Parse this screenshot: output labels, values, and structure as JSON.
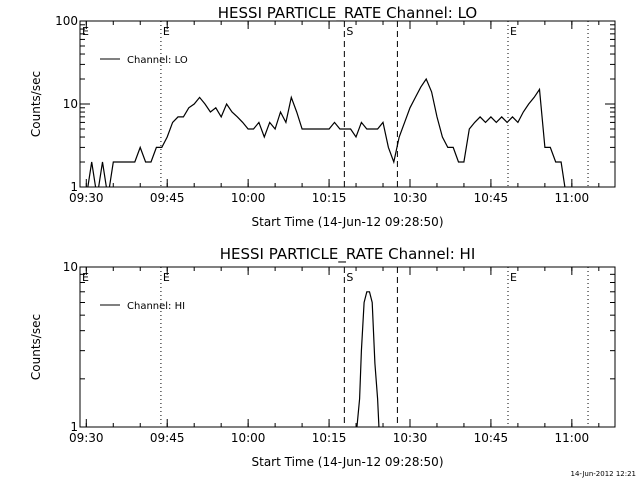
{
  "footer": {
    "timestamp": "14-Jun-2012 12:21"
  },
  "chart_data": [
    {
      "type": "line",
      "title": "HESSI PARTICLE_RATE Channel: LO",
      "xlabel": "Start Time (14-Jun-12 09:28:50)",
      "ylabel": "Counts/sec",
      "yscale": "log",
      "ylim": [
        1,
        100
      ],
      "ytick_labels": [
        "1",
        "10",
        "100"
      ],
      "xlim": [
        "09:28:50",
        "11:08:00"
      ],
      "xtick_labels": [
        "09:30",
        "09:45",
        "10:00",
        "10:15",
        "10:30",
        "10:45",
        "11:00"
      ],
      "legend": {
        "placement": "top-left",
        "entries": [
          "Channel: LO"
        ]
      },
      "markers": [
        {
          "label": "E",
          "time": "09:28:50",
          "style": "none"
        },
        {
          "label": "E",
          "time": "09:43:50",
          "style": "dotted"
        },
        {
          "label": "S",
          "time": "10:17:50",
          "style": "dashed"
        },
        {
          "label": "",
          "time": "10:27:40",
          "style": "dashed"
        },
        {
          "label": "E",
          "time": "10:48:10",
          "style": "dotted"
        },
        {
          "label": "",
          "time": "11:03:00",
          "style": "dotted"
        }
      ],
      "series": [
        {
          "name": "Channel: LO",
          "x": [
            "09:30",
            "09:31",
            "09:32",
            "09:33",
            "09:34",
            "09:35",
            "09:36",
            "09:37",
            "09:38",
            "09:39",
            "09:40",
            "09:41",
            "09:42",
            "09:43",
            "09:44",
            "09:45",
            "09:46",
            "09:47",
            "09:48",
            "09:49",
            "09:50",
            "09:51",
            "09:52",
            "09:53",
            "09:54",
            "09:55",
            "09:56",
            "09:57",
            "09:58",
            "09:59",
            "10:00",
            "10:01",
            "10:02",
            "10:03",
            "10:04",
            "10:05",
            "10:06",
            "10:07",
            "10:08",
            "10:09",
            "10:10",
            "10:11",
            "10:12",
            "10:13",
            "10:14",
            "10:15",
            "10:16",
            "10:17",
            "10:18",
            "10:19",
            "10:20",
            "10:21",
            "10:22",
            "10:23",
            "10:24",
            "10:25",
            "10:26",
            "10:27",
            "10:28",
            "10:29",
            "10:30",
            "10:31",
            "10:32",
            "10:33",
            "10:34",
            "10:35",
            "10:36",
            "10:37",
            "10:38",
            "10:39",
            "10:40",
            "10:41",
            "10:42",
            "10:43",
            "10:44",
            "10:45",
            "10:46",
            "10:47",
            "10:48",
            "10:49",
            "10:50",
            "10:51",
            "10:52",
            "10:53",
            "10:54",
            "10:55",
            "10:56",
            "10:57",
            "10:58",
            "10:59",
            "11:00"
          ],
          "y": [
            1,
            2,
            1,
            2,
            1,
            2,
            2,
            2,
            2,
            2,
            3,
            2,
            2,
            3,
            3,
            4,
            6,
            7,
            7,
            9,
            10,
            12,
            10,
            8,
            9,
            7,
            10,
            8,
            7,
            6,
            5,
            5,
            6,
            4,
            6,
            5,
            8,
            6,
            12,
            8,
            5,
            5,
            5,
            5,
            5,
            5,
            6,
            5,
            5,
            5,
            4,
            6,
            5,
            5,
            5,
            6,
            3,
            2,
            4,
            6,
            9,
            12,
            16,
            20,
            14,
            7,
            4,
            3,
            3,
            2,
            2,
            5,
            6,
            7,
            6,
            7,
            6,
            7,
            6,
            7,
            6,
            8,
            10,
            12,
            15,
            3,
            3,
            2,
            2,
            1,
            1
          ]
        }
      ]
    },
    {
      "type": "line",
      "title": "HESSI PARTICLE_RATE Channel: HI",
      "xlabel": "Start Time (14-Jun-12 09:28:50)",
      "ylabel": "Counts/sec",
      "yscale": "log",
      "ylim": [
        1,
        10
      ],
      "ytick_labels": [
        "1",
        "10"
      ],
      "xlim": [
        "09:28:50",
        "11:08:00"
      ],
      "xtick_labels": [
        "09:30",
        "09:45",
        "10:00",
        "10:15",
        "10:30",
        "10:45",
        "11:00"
      ],
      "legend": {
        "placement": "top-left",
        "entries": [
          "Channel: HI"
        ]
      },
      "markers": [
        {
          "label": "E",
          "time": "09:28:50",
          "style": "none"
        },
        {
          "label": "E",
          "time": "09:43:50",
          "style": "dotted"
        },
        {
          "label": "S",
          "time": "10:17:50",
          "style": "dashed"
        },
        {
          "label": "",
          "time": "10:27:40",
          "style": "dashed"
        },
        {
          "label": "E",
          "time": "10:48:10",
          "style": "dotted"
        },
        {
          "label": "",
          "time": "11:03:00",
          "style": "dotted"
        }
      ],
      "series": [
        {
          "name": "Channel: HI",
          "x": [
            "10:20:00",
            "10:20:40",
            "10:21:00",
            "10:21:30",
            "10:22:00",
            "10:22:30",
            "10:23:00",
            "10:23:30",
            "10:24:00",
            "10:24:20"
          ],
          "y": [
            1,
            1.5,
            3,
            6,
            7,
            7,
            6,
            2.5,
            1.5,
            1
          ]
        }
      ]
    }
  ]
}
